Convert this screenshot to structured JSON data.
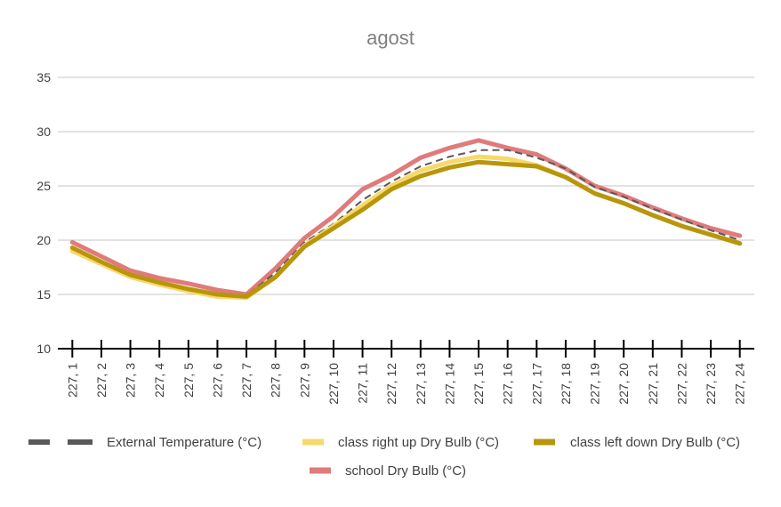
{
  "chart_data": {
    "type": "line",
    "title": "agost",
    "xlabel": "",
    "ylabel": "",
    "ylim": [
      10,
      35
    ],
    "yticks": [
      10,
      15,
      20,
      25,
      30,
      35
    ],
    "grid": true,
    "legend_position": "bottom",
    "categories": [
      "227, 1",
      "227, 2",
      "227, 3",
      "227, 4",
      "227, 5",
      "227, 6",
      "227, 7",
      "227, 8",
      "227, 9",
      "227, 10",
      "227, 11",
      "227, 12",
      "227, 13",
      "227, 14",
      "227, 15",
      "227, 16",
      "227, 17",
      "227, 18",
      "227, 19",
      "227, 20",
      "227, 21",
      "227, 22",
      "227, 23",
      "227, 24"
    ],
    "series": [
      {
        "name": "External Temperature (°C)",
        "color": "#595959",
        "style": "dashed",
        "values": [
          19.1,
          17.9,
          16.7,
          16.0,
          15.3,
          14.9,
          14.9,
          17.0,
          19.8,
          21.5,
          23.7,
          25.4,
          26.8,
          27.7,
          28.3,
          28.3,
          27.6,
          26.6,
          24.9,
          24.0,
          22.9,
          21.9,
          20.9,
          20.0
        ]
      },
      {
        "name": "class right up Dry Bulb (°C)",
        "color": "#f7d96b",
        "style": "solid",
        "values": [
          19.0,
          17.8,
          16.6,
          15.9,
          15.3,
          14.8,
          14.7,
          16.6,
          19.5,
          21.3,
          23.2,
          25.0,
          26.4,
          27.2,
          27.7,
          27.5,
          26.9,
          25.8,
          24.3,
          23.4,
          22.3,
          21.3,
          20.5,
          19.7
        ]
      },
      {
        "name": "class left down Dry Bulb (°C)",
        "color": "#b8960c",
        "style": "solid",
        "values": [
          19.3,
          18.0,
          16.8,
          16.1,
          15.5,
          15.0,
          14.8,
          16.6,
          19.4,
          21.1,
          22.8,
          24.7,
          25.9,
          26.7,
          27.2,
          27.0,
          26.8,
          25.8,
          24.3,
          23.4,
          22.3,
          21.3,
          20.5,
          19.7
        ]
      },
      {
        "name": "school Dry Bulb (°C)",
        "color": "#e07b7b",
        "style": "solid",
        "values": [
          19.8,
          18.5,
          17.2,
          16.5,
          16.0,
          15.4,
          15.0,
          17.4,
          20.2,
          22.2,
          24.7,
          26.0,
          27.6,
          28.5,
          29.2,
          28.5,
          27.9,
          26.6,
          25.0,
          24.1,
          23.0,
          22.0,
          21.1,
          20.4
        ]
      }
    ]
  }
}
